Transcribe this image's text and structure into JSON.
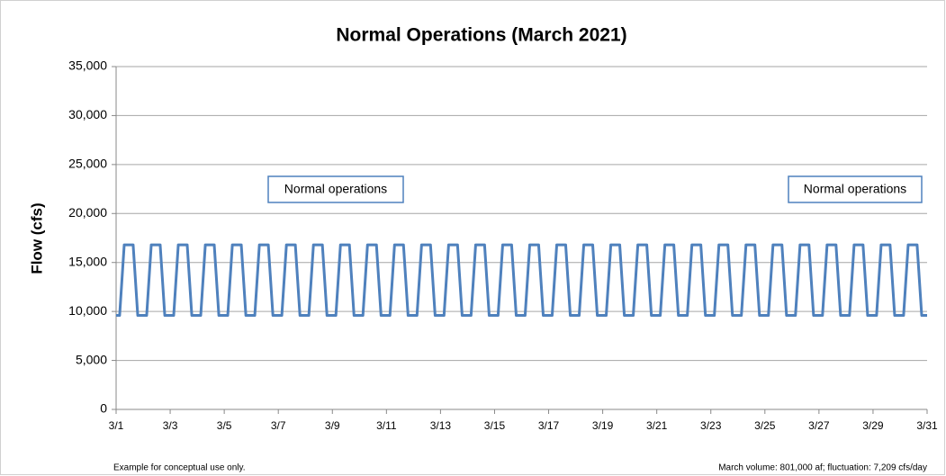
{
  "chart_data": {
    "type": "line",
    "title": "Normal Operations (March 2021)",
    "ylabel": "Flow (cfs)",
    "annotations": [
      "Normal operations",
      "Normal operations"
    ],
    "footnote_left": "Example for conceptual use only.",
    "footnote_right": "March volume: 801,000 af; fluctuation: 7,209 cfs/day",
    "x": [
      1,
      1.13,
      1.3,
      1.63,
      1.8,
      2.13,
      2.3,
      2.63,
      2.8,
      3.13,
      3.3,
      3.63,
      3.8,
      4.13,
      4.3,
      4.63,
      4.8,
      5.13,
      5.3,
      5.63,
      5.8,
      6.13,
      6.3,
      6.63,
      6.8,
      7.13,
      7.3,
      7.63,
      7.8,
      8.13,
      8.3,
      8.63,
      8.8,
      9.13,
      9.3,
      9.63,
      9.8,
      10.13,
      10.3,
      10.63,
      10.8,
      11.13,
      11.3,
      11.63,
      11.8,
      12.13,
      12.3,
      12.63,
      12.8,
      13.13,
      13.3,
      13.63,
      13.8,
      14.13,
      14.3,
      14.63,
      14.8,
      15.13,
      15.3,
      15.63,
      15.8,
      16.13,
      16.3,
      16.63,
      16.8,
      17.13,
      17.3,
      17.63,
      17.8,
      18.13,
      18.3,
      18.63,
      18.8,
      19.13,
      19.3,
      19.63,
      19.8,
      20.13,
      20.3,
      20.63,
      20.8,
      21.13,
      21.3,
      21.63,
      21.8,
      22.13,
      22.3,
      22.63,
      22.8,
      23.13,
      23.3,
      23.63,
      23.8,
      24.13,
      24.3,
      24.63,
      24.8,
      25.13,
      25.3,
      25.63,
      25.8,
      26.13,
      26.3,
      26.63,
      26.8,
      27.13,
      27.3,
      27.63,
      27.8,
      28.13,
      28.3,
      28.63,
      28.8,
      29.13,
      29.3,
      29.63,
      29.8,
      30.13,
      30.3,
      30.63,
      30.8,
      31
    ],
    "series": [
      {
        "name": "Flow",
        "color": "#4f81bd",
        "values": [
          9600,
          9600,
          16800,
          16800,
          9600,
          9600,
          16800,
          16800,
          9600,
          9600,
          16800,
          16800,
          9600,
          9600,
          16800,
          16800,
          9600,
          9600,
          16800,
          16800,
          9600,
          9600,
          16800,
          16800,
          9600,
          9600,
          16800,
          16800,
          9600,
          9600,
          16800,
          16800,
          9600,
          9600,
          16800,
          16800,
          9600,
          9600,
          16800,
          16800,
          9600,
          9600,
          16800,
          16800,
          9600,
          9600,
          16800,
          16800,
          9600,
          9600,
          16800,
          16800,
          9600,
          9600,
          16800,
          16800,
          9600,
          9600,
          16800,
          16800,
          9600,
          9600,
          16800,
          16800,
          9600,
          9600,
          16800,
          16800,
          9600,
          9600,
          16800,
          16800,
          9600,
          9600,
          16800,
          16800,
          9600,
          9600,
          16800,
          16800,
          9600,
          9600,
          16800,
          16800,
          9600,
          9600,
          16800,
          16800,
          9600,
          9600,
          16800,
          16800,
          9600,
          9600,
          16800,
          16800,
          9600,
          9600,
          16800,
          16800,
          9600,
          9600,
          16800,
          16800,
          9600,
          9600,
          16800,
          16800,
          9600,
          9600,
          16800,
          16800,
          9600,
          9600,
          16800,
          16800,
          9600,
          9600,
          16800,
          16800,
          9600,
          9600
        ]
      }
    ],
    "xlim": [
      1,
      31
    ],
    "xticks": [
      {
        "value": 1,
        "label": "3/1"
      },
      {
        "value": 3,
        "label": "3/3"
      },
      {
        "value": 5,
        "label": "3/5"
      },
      {
        "value": 7,
        "label": "3/7"
      },
      {
        "value": 9,
        "label": "3/9"
      },
      {
        "value": 11,
        "label": "3/11"
      },
      {
        "value": 13,
        "label": "3/13"
      },
      {
        "value": 15,
        "label": "3/15"
      },
      {
        "value": 17,
        "label": "3/17"
      },
      {
        "value": 19,
        "label": "3/19"
      },
      {
        "value": 21,
        "label": "3/21"
      },
      {
        "value": 23,
        "label": "3/23"
      },
      {
        "value": 25,
        "label": "3/25"
      },
      {
        "value": 27,
        "label": "3/27"
      },
      {
        "value": 29,
        "label": "3/29"
      },
      {
        "value": 31,
        "label": "3/31"
      }
    ],
    "ylim": [
      0,
      35000
    ],
    "yticks": [
      0,
      {
        "value": 5000,
        "label": "5,000"
      },
      {
        "value": 10000,
        "label": "10,000"
      },
      {
        "value": 15000,
        "label": "15,000"
      },
      {
        "value": 20000,
        "label": "20,000"
      },
      {
        "value": 25000,
        "label": "25,000"
      },
      {
        "value": 30000,
        "label": "30,000"
      },
      {
        "value": 35000,
        "label": "35,000"
      }
    ],
    "grid": true
  }
}
